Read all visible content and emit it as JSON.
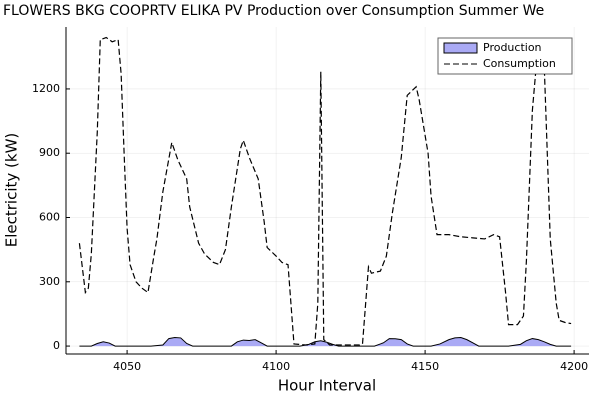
{
  "chart_data": {
    "type": "line",
    "title": "FLOWERS BKG COOPRTV ELIKA PV Production over Consumption Summer We",
    "x_label": "Hour Interval",
    "y_label": "Electricity (kW)",
    "xlim": [
      4029.5,
      4205
    ],
    "ylim": [
      -37,
      1489
    ],
    "xticks": [
      4050,
      4100,
      4150,
      4200
    ],
    "yticks": [
      0,
      300,
      600,
      900,
      1200
    ],
    "grid": true,
    "legend": "top-right",
    "series": [
      {
        "name": "Production",
        "style": "area",
        "color": "#aaaaf5",
        "x": [
          4034,
          4038,
          4040,
          4042,
          4044,
          4046,
          4058,
          4062,
          4064,
          4066,
          4068,
          4070,
          4072,
          4085,
          4087,
          4089,
          4091,
          4093,
          4095,
          4097,
          4108,
          4111,
          4113,
          4115,
          4117,
          4119,
          4121,
          4133,
          4136,
          4138,
          4140,
          4142,
          4144,
          4146,
          4152,
          4155,
          4158,
          4160,
          4162,
          4164,
          4166,
          4168,
          4178,
          4182,
          4184,
          4186,
          4188,
          4190,
          4192,
          4194,
          4199
        ],
        "values": [
          0,
          0,
          12,
          20,
          14,
          0,
          0,
          5,
          35,
          40,
          38,
          12,
          0,
          0,
          20,
          28,
          26,
          30,
          15,
          0,
          0,
          8,
          20,
          25,
          18,
          8,
          0,
          0,
          15,
          35,
          34,
          30,
          10,
          0,
          0,
          10,
          30,
          38,
          40,
          30,
          15,
          0,
          0,
          8,
          25,
          35,
          30,
          20,
          8,
          0,
          0
        ]
      },
      {
        "name": "Consumption",
        "style": "dashed",
        "color": "#000000",
        "x": [
          4034,
          4036,
          4037,
          4038,
          4040,
          4041,
          4043,
          4045,
          4047,
          4048,
          4049,
          4050,
          4051,
          4053,
          4055,
          4057,
          4059,
          4060,
          4062,
          4065,
          4067,
          4070,
          4071,
          4074,
          4076,
          4079,
          4081,
          4083,
          4085,
          4088,
          4089,
          4091,
          4094,
          4096,
          4097,
          4100,
          4102,
          4104,
          4106,
          4110,
          4113,
          4114,
          4115,
          4116,
          4118,
          4128,
          4129,
          4131,
          4132,
          4135,
          4137,
          4139,
          4142,
          4144,
          4147,
          4148,
          4151,
          4152,
          4154,
          4158,
          4162,
          4166,
          4170,
          4173,
          4175,
          4177,
          4178,
          4181,
          4183,
          4184,
          4186,
          4188,
          4190,
          4192,
          4194,
          4195,
          4197,
          4199
        ],
        "values": [
          480,
          250,
          270,
          430,
          1000,
          1430,
          1440,
          1420,
          1430,
          1270,
          900,
          550,
          380,
          300,
          270,
          250,
          420,
          500,
          720,
          950,
          870,
          780,
          650,
          480,
          430,
          390,
          380,
          450,
          650,
          920,
          960,
          880,
          780,
          580,
          460,
          420,
          390,
          380,
          10,
          5,
          10,
          200,
          1280,
          30,
          5,
          5,
          10,
          370,
          340,
          350,
          420,
          620,
          880,
          1170,
          1210,
          1150,
          900,
          700,
          520,
          520,
          510,
          505,
          500,
          520,
          510,
          250,
          100,
          100,
          140,
          400,
          1100,
          1420,
          1300,
          500,
          200,
          120,
          110,
          105
        ]
      }
    ]
  }
}
